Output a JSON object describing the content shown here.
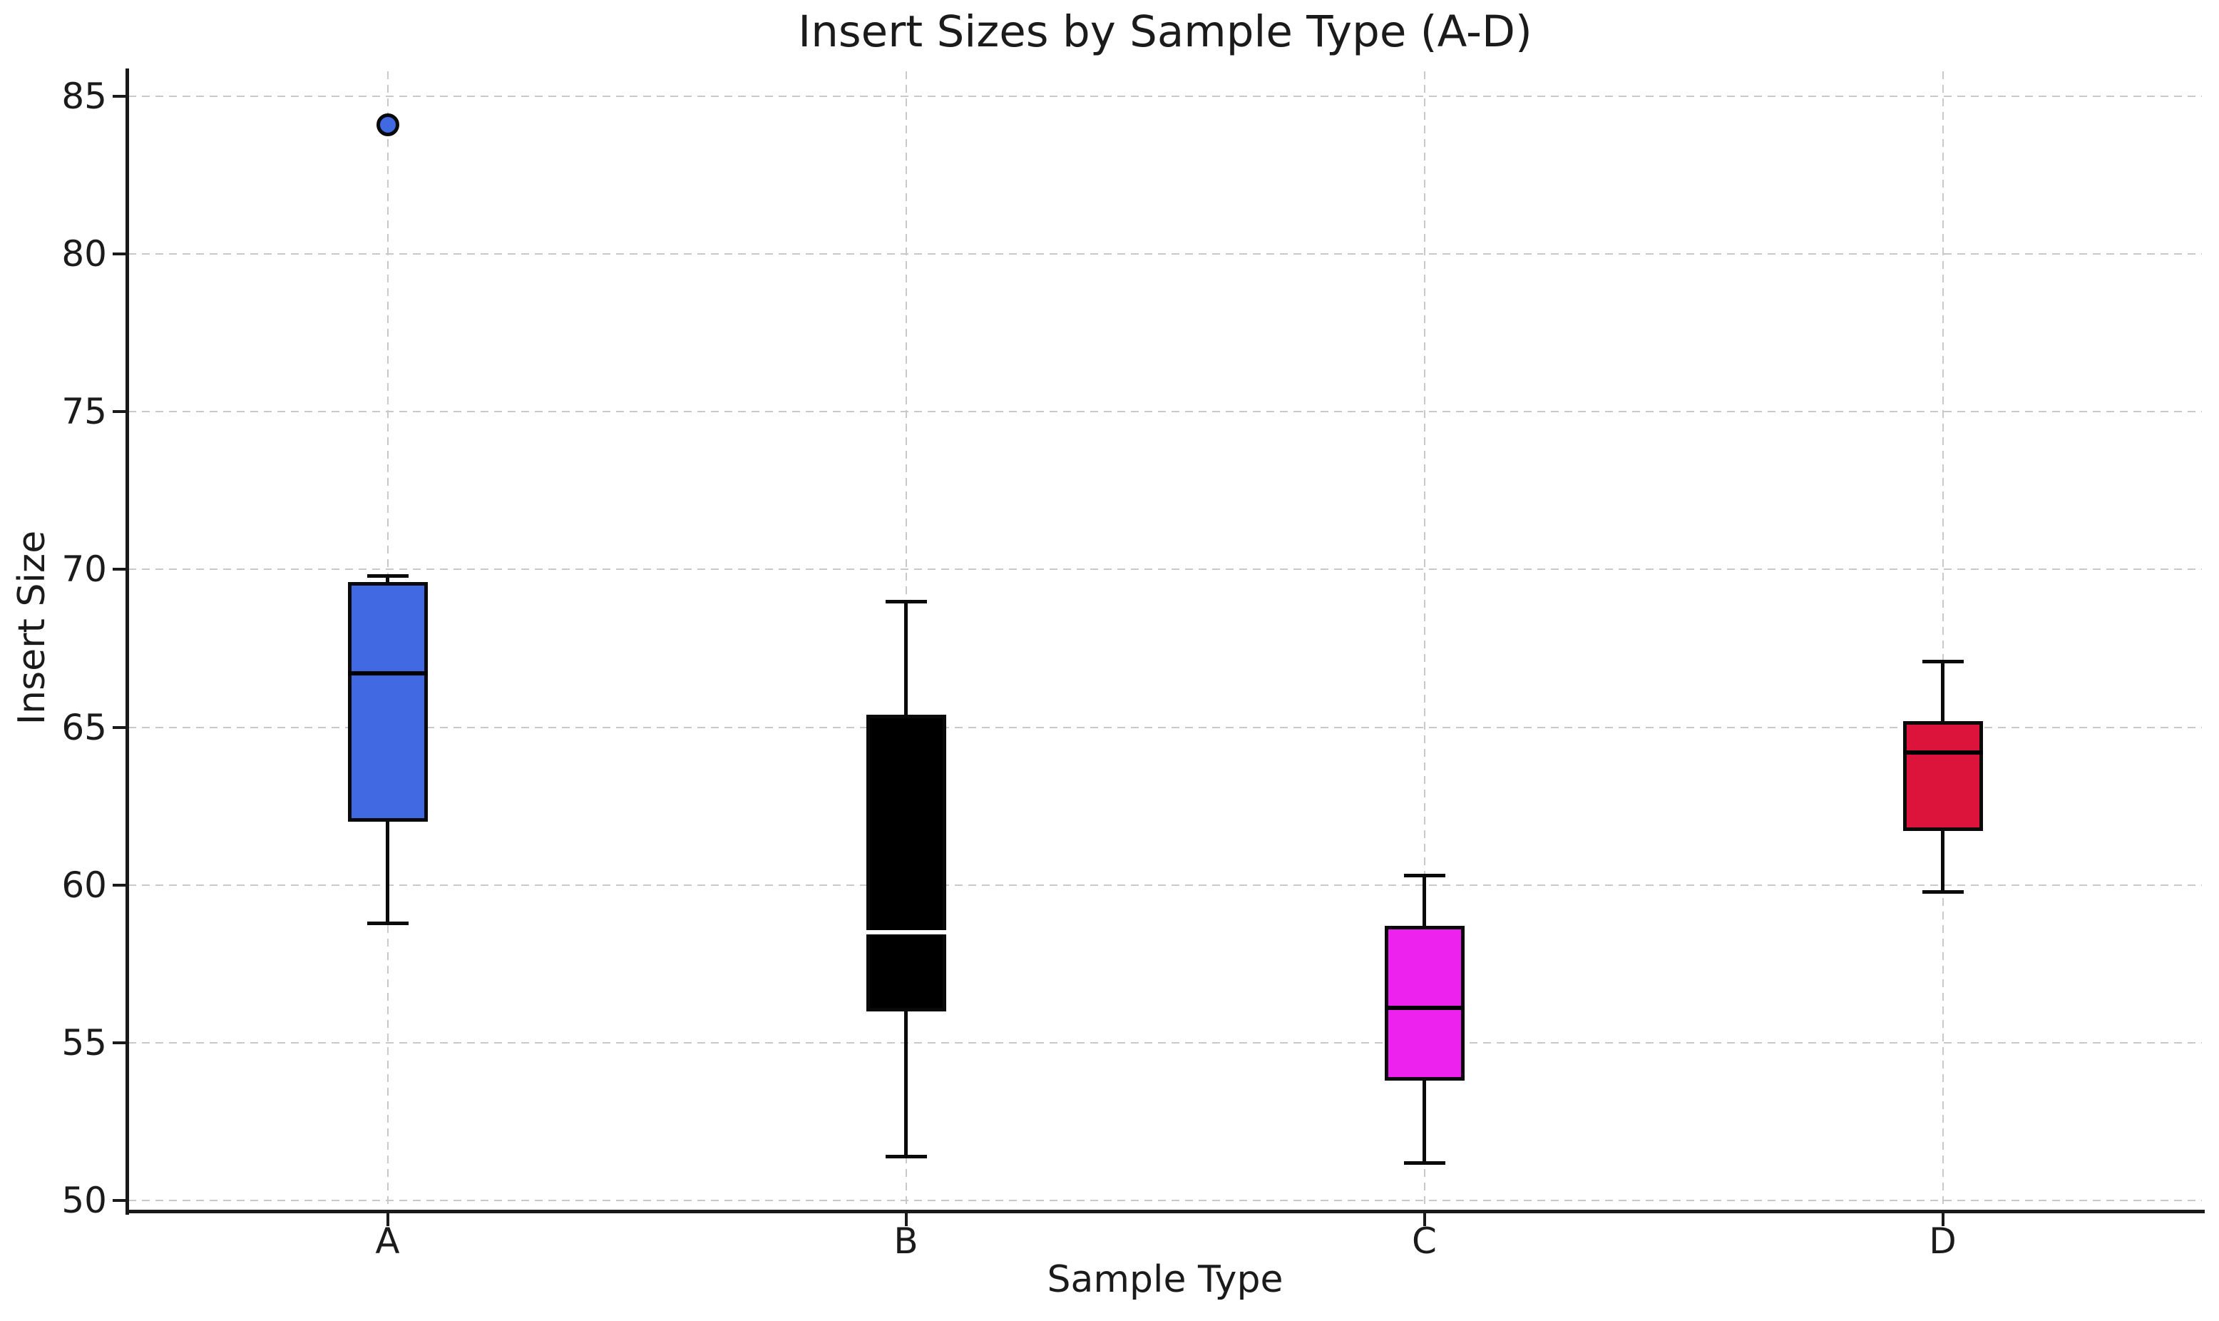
{
  "chart_data": {
    "type": "boxplot",
    "title": "Insert Sizes by Sample Type (A-D)",
    "xlabel": "Sample Type",
    "ylabel": "Insert Size",
    "categories": [
      "A",
      "B",
      "C",
      "D"
    ],
    "y_ticks": [
      50,
      55,
      60,
      65,
      70,
      75,
      80,
      85
    ],
    "ylim": [
      49.66,
      85.79
    ],
    "grid": "dashed, both horizontal and vertical, light gray",
    "legend": "none",
    "text_color": "#1b1b1b",
    "grid_color": "#c9c9c9",
    "background_color": "#ffffff",
    "series": [
      {
        "label": "A",
        "color": "#4169E1",
        "median_color": "#000000",
        "whisker_low": 58.8,
        "q1": 62.0,
        "median": 66.7,
        "q3": 69.6,
        "whisker_high": 69.8,
        "outliers": [
          84.1
        ]
      },
      {
        "label": "B",
        "color": "#000000",
        "median_color": "#FFFFFF",
        "whisker_low": 51.4,
        "q1": 56.0,
        "median": 58.5,
        "q3": 65.4,
        "whisker_high": 69.0,
        "outliers": []
      },
      {
        "label": "C",
        "color": "#EE22EE",
        "median_color": "#000000",
        "whisker_low": 51.2,
        "q1": 53.8,
        "median": 56.1,
        "q3": 58.7,
        "whisker_high": 60.3,
        "outliers": []
      },
      {
        "label": "D",
        "color": "#DC143C",
        "median_color": "#000000",
        "whisker_low": 59.8,
        "q1": 61.7,
        "median": 64.2,
        "q3": 65.2,
        "whisker_high": 67.1,
        "outliers": []
      }
    ]
  }
}
